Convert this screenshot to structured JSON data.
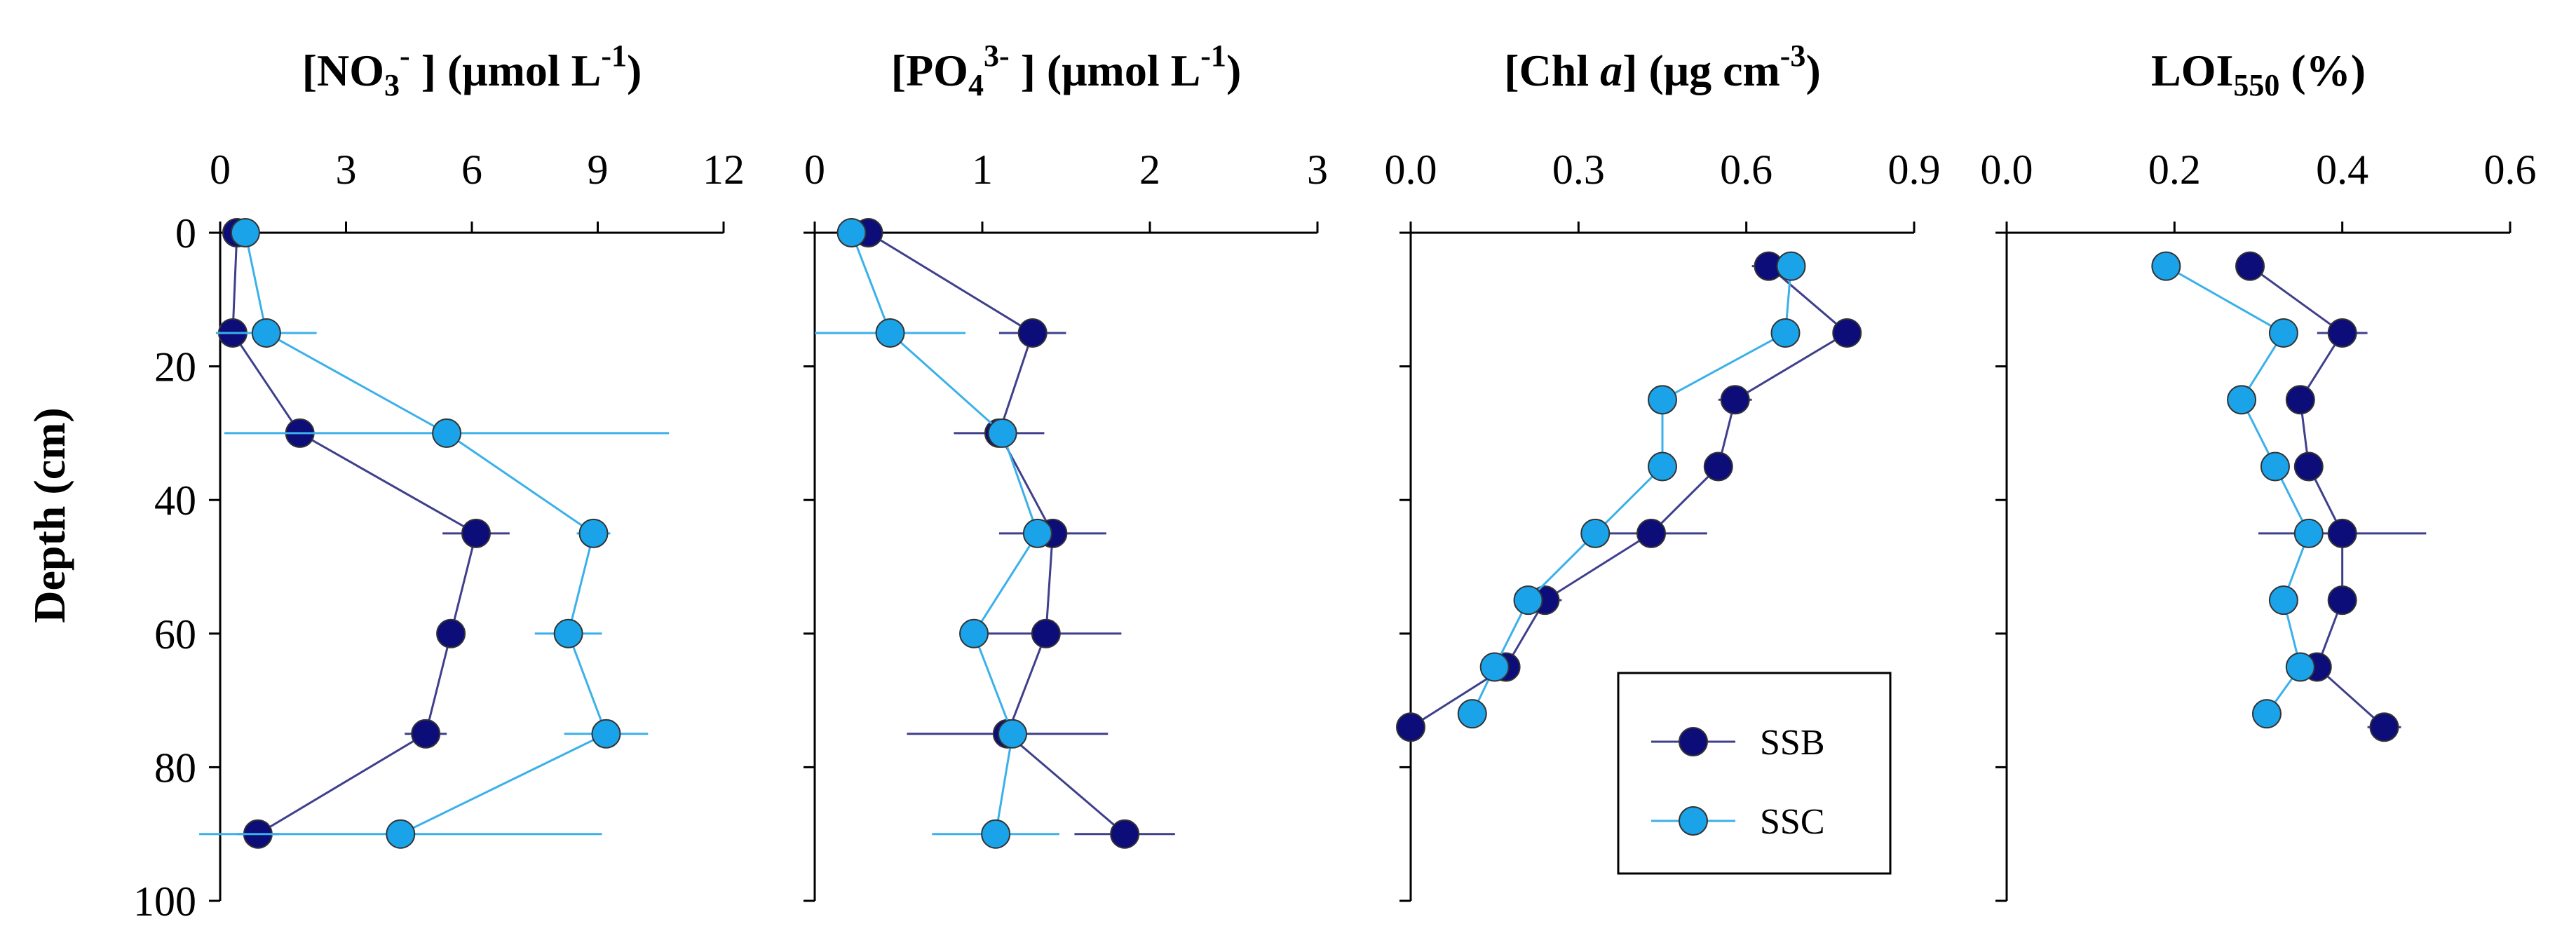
{
  "chart_data": {
    "type": "scatter",
    "layout": "four depth-profile panels sharing the depth axis",
    "ylabel": "Depth (cm)",
    "y_axis": {
      "ylim": [
        0,
        100
      ],
      "ticks": [
        0,
        20,
        40,
        60,
        80,
        100
      ],
      "inverted": true
    },
    "series_style": [
      {
        "name": "SSB",
        "marker_color": "#0d0d7a",
        "line_color": "#3f3f8c"
      },
      {
        "name": "SSC",
        "marker_color": "#1aa3e8",
        "line_color": "#3bb0ea"
      }
    ],
    "legend": {
      "entries": [
        "SSB",
        "SSC"
      ],
      "placement": "bottom-right of third panel"
    },
    "panels": [
      {
        "title_main": "[NO",
        "title_sub": "3",
        "title_sup": "-",
        "title_rest": " ] (μmol L",
        "title_sup2": "-1",
        "title_end": ")",
        "xlim": [
          0,
          12
        ],
        "xticks": [
          0,
          3,
          6,
          9,
          12
        ],
        "xtick_labels": [
          "0",
          "3",
          "6",
          "9",
          "12"
        ],
        "series": [
          {
            "name": "SSB",
            "depth": [
              0,
              15,
              30,
              45,
              60,
              75,
              90
            ],
            "values": [
              0.4,
              0.3,
              1.9,
              6.1,
              5.5,
              4.9,
              0.9
            ],
            "errors": [
              0.3,
              0.2,
              0.2,
              0.8,
              0.2,
              0.5,
              0.5
            ]
          },
          {
            "name": "SSC",
            "depth": [
              0,
              15,
              30,
              45,
              60,
              75,
              90
            ],
            "values": [
              0.6,
              1.1,
              5.4,
              8.9,
              8.3,
              9.2,
              4.3
            ],
            "errors": [
              0.2,
              1.2,
              5.3,
              0.4,
              0.8,
              1.0,
              4.8
            ]
          }
        ]
      },
      {
        "title_main": "[PO",
        "title_sub": "4",
        "title_sup": "3-",
        "title_rest": " ] (μmol L",
        "title_sup2": "-1",
        "title_end": ")",
        "xlim": [
          0,
          3
        ],
        "xticks": [
          0,
          1,
          2,
          3
        ],
        "xtick_labels": [
          "0",
          "1",
          "2",
          "3"
        ],
        "series": [
          {
            "name": "SSB",
            "depth": [
              0,
              15,
              30,
              45,
              60,
              75,
              90
            ],
            "values": [
              0.32,
              1.3,
              1.1,
              1.42,
              1.38,
              1.15,
              1.85
            ],
            "errors": [
              0.05,
              0.2,
              0.27,
              0.32,
              0.45,
              0.6,
              0.3
            ]
          },
          {
            "name": "SSC",
            "depth": [
              0,
              15,
              30,
              45,
              60,
              75,
              90
            ],
            "values": [
              0.22,
              0.45,
              1.12,
              1.33,
              0.95,
              1.18,
              1.08
            ],
            "errors": [
              0.05,
              0.45,
              0.05,
              0.05,
              0.05,
              0.05,
              0.38
            ]
          }
        ]
      },
      {
        "title_main": "[Chl ",
        "title_italic": "a",
        "title_rest": "] (μg cm",
        "title_sup2": "-3",
        "title_end": ")",
        "xlim": [
          0,
          0.9
        ],
        "xticks": [
          0,
          0.3,
          0.6,
          0.9
        ],
        "xtick_labels": [
          "0.0",
          "0.3",
          "0.6",
          "0.9"
        ],
        "series": [
          {
            "name": "SSB",
            "depth": [
              5,
              15,
              25,
              35,
              45,
              55,
              65,
              74
            ],
            "values": [
              0.64,
              0.78,
              0.58,
              0.55,
              0.43,
              0.24,
              0.17,
              0.0
            ],
            "errors": [
              0.03,
              0.02,
              0.03,
              0.02,
              0.1,
              0.03,
              0.02,
              0.01
            ]
          },
          {
            "name": "SSC",
            "depth": [
              5,
              15,
              25,
              35,
              45,
              55,
              65,
              72
            ],
            "values": [
              0.68,
              0.67,
              0.45,
              0.45,
              0.33,
              0.21,
              0.15,
              0.11
            ],
            "errors": [
              0.02,
              0.02,
              0.02,
              0.02,
              0.02,
              0.02,
              0.02,
              0.01
            ]
          }
        ]
      },
      {
        "title_main": "LOI",
        "title_sub": "550",
        "title_rest": " (%)",
        "xlim": [
          0,
          0.6
        ],
        "xticks": [
          0,
          0.2,
          0.4,
          0.6
        ],
        "xtick_labels": [
          "0.0",
          "0.2",
          "0.4",
          "0.6"
        ],
        "series": [
          {
            "name": "SSB",
            "depth": [
              5,
              15,
              25,
              35,
              45,
              55,
              65,
              74
            ],
            "values": [
              0.29,
              0.4,
              0.35,
              0.36,
              0.4,
              0.4,
              0.37,
              0.45
            ],
            "errors": [
              0.01,
              0.03,
              0.01,
              0.01,
              0.1,
              0.01,
              0.01,
              0.02
            ]
          },
          {
            "name": "SSC",
            "depth": [
              5,
              15,
              25,
              35,
              45,
              55,
              65,
              72
            ],
            "values": [
              0.19,
              0.33,
              0.28,
              0.32,
              0.36,
              0.33,
              0.35,
              0.31
            ],
            "errors": [
              0.01,
              0.01,
              0.01,
              0.01,
              0.01,
              0.01,
              0.01,
              0.01
            ]
          }
        ]
      }
    ]
  }
}
